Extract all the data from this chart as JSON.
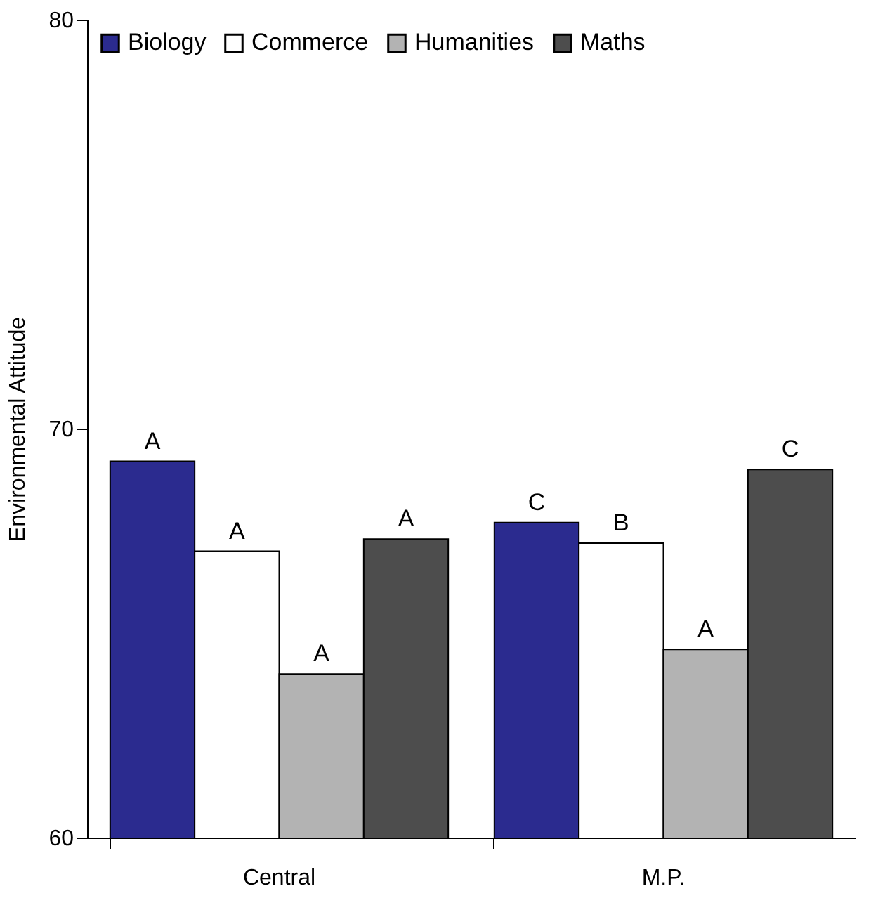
{
  "chart_data": {
    "type": "bar",
    "ylabel": "Environmental Attitude",
    "categories": [
      "Central",
      "M.P."
    ],
    "series": [
      {
        "name": "Biology",
        "color": "#2b2b8f",
        "values": [
          69.2,
          67.7
        ],
        "value_labels": [
          "A",
          "C"
        ]
      },
      {
        "name": "Commerce",
        "color": "#ffffff",
        "values": [
          67.0,
          67.2
        ],
        "value_labels": [
          "A",
          "B"
        ]
      },
      {
        "name": "Humanities",
        "color": "#b3b3b3",
        "values": [
          64.0,
          64.6
        ],
        "value_labels": [
          "A",
          "A"
        ]
      },
      {
        "name": "Maths",
        "color": "#4d4d4d",
        "values": [
          67.3,
          69.0
        ],
        "value_labels": [
          "A",
          "C"
        ]
      }
    ],
    "ylim": [
      60,
      80
    ],
    "yticks": [
      60,
      70,
      80
    ],
    "grid": false,
    "legend": "top left"
  }
}
